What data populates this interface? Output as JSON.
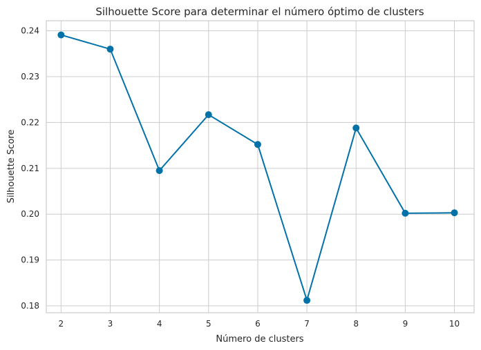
{
  "chart_data": {
    "type": "line",
    "title": "Silhouette Score para determinar el número óptimo de clusters",
    "xlabel": "Número de clusters",
    "ylabel": "Silhouette Score",
    "x": [
      2,
      3,
      4,
      5,
      6,
      7,
      8,
      9,
      10
    ],
    "x_ticks": [
      "2",
      "3",
      "4",
      "5",
      "6",
      "7",
      "8",
      "9",
      "10"
    ],
    "y_ticks": [
      "0.18",
      "0.19",
      "0.20",
      "0.21",
      "0.22",
      "0.23",
      "0.24"
    ],
    "y_tick_values": [
      0.18,
      0.19,
      0.2,
      0.21,
      0.22,
      0.23,
      0.24
    ],
    "series": [
      {
        "values": [
          0.2391,
          0.236,
          0.2095,
          0.2217,
          0.2152,
          0.1812,
          0.2188,
          0.2002,
          0.2003
        ],
        "color": "#0072a8",
        "marker": "circle"
      }
    ],
    "xlim": [
      1.7,
      10.4
    ],
    "ylim": [
      0.1785,
      0.2422
    ],
    "grid": true
  }
}
